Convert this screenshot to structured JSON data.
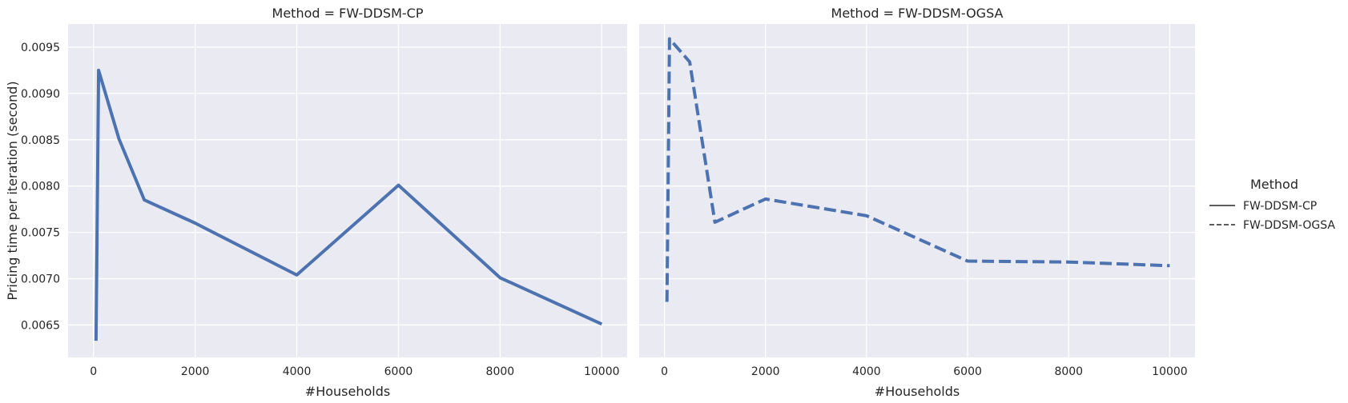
{
  "chart_data": {
    "type": "line",
    "ylabel": "Pricing time per iteration (second)",
    "ylim": [
      0.00615,
      0.00975
    ],
    "yticks": [
      "0.0065",
      "0.0070",
      "0.0075",
      "0.0080",
      "0.0085",
      "0.0090",
      "0.0095"
    ],
    "xticks": [
      "0",
      "2000",
      "4000",
      "6000",
      "8000",
      "10000"
    ],
    "xlim": [
      -500,
      10500
    ],
    "grid": true,
    "legend": {
      "title": "Method",
      "placement": "right",
      "entries": [
        {
          "label": "FW-DDSM-CP",
          "style": "solid"
        },
        {
          "label": "FW-DDSM-OGSA",
          "style": "dashed"
        }
      ]
    },
    "panels": [
      {
        "title": "Method = FW-DDSM-CP",
        "xlabel": "#Households",
        "series": [
          {
            "style": "solid",
            "color": "#4c72b0",
            "x": [
              50,
              100,
              500,
              1000,
              2000,
              4000,
              6000,
              8000,
              10000
            ],
            "y": [
              0.00633,
              0.00925,
              0.00851,
              0.00785,
              0.0076,
              0.00704,
              0.00801,
              0.00701,
              0.00651
            ]
          }
        ]
      },
      {
        "title": "Method = FW-DDSM-OGSA",
        "xlabel": "#Households",
        "series": [
          {
            "style": "dashed",
            "color": "#4c72b0",
            "x": [
              50,
              100,
              500,
              1000,
              2000,
              4000,
              6000,
              8000,
              10000
            ],
            "y": [
              0.00675,
              0.00959,
              0.00934,
              0.00761,
              0.00786,
              0.00768,
              0.00719,
              0.00718,
              0.00714
            ]
          }
        ]
      }
    ]
  }
}
